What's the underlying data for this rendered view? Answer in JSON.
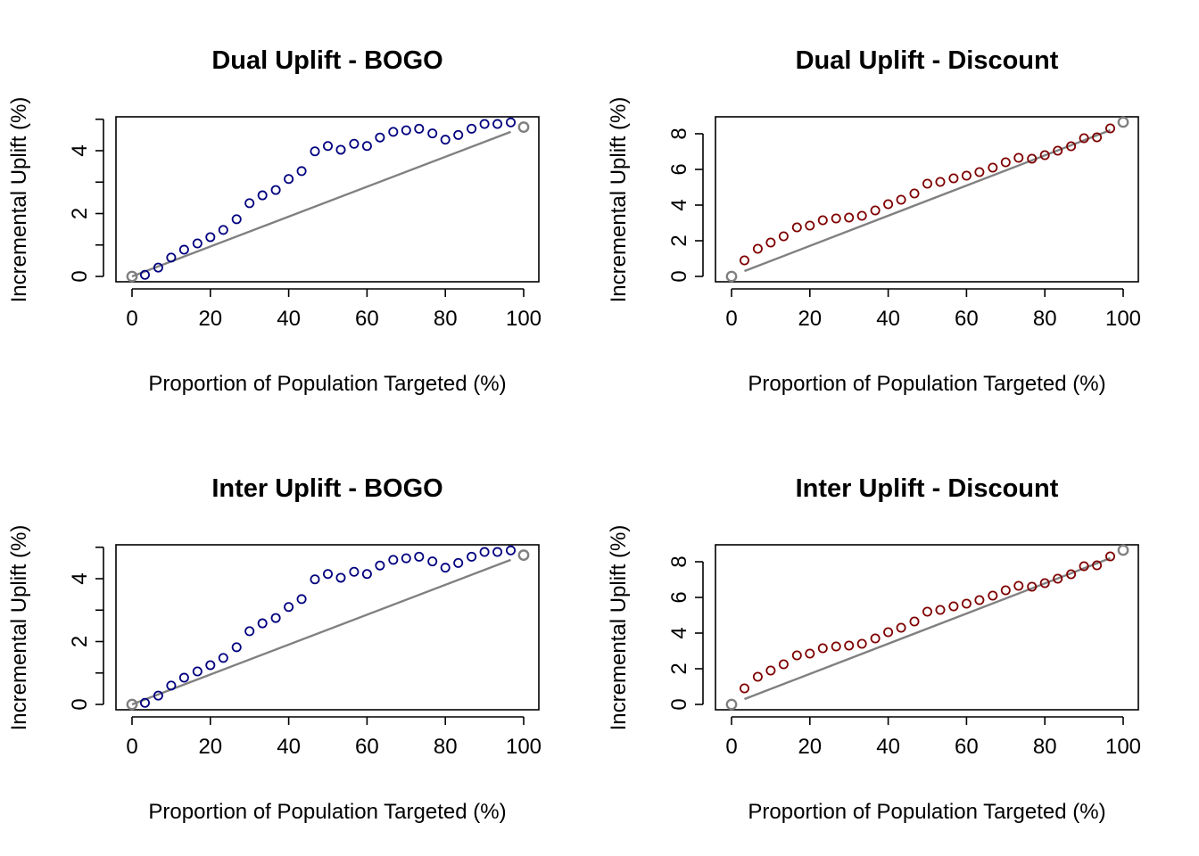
{
  "colors": {
    "bogo": "#00007f",
    "discount": "#7f0000",
    "reference": "#808080",
    "endpoint": "#808080"
  },
  "chart_data": [
    {
      "type": "scatter",
      "title": "Dual Uplift - BOGO",
      "xlabel": "Proportion of Population Targeted (%)",
      "ylabel": "Incremental Uplift (%)",
      "xlim": [
        0,
        100
      ],
      "ylim": [
        0,
        5
      ],
      "xticks": [
        0,
        20,
        40,
        60,
        80,
        100
      ],
      "yticks": [
        0,
        2,
        4
      ],
      "grid": false,
      "series": [
        {
          "x": [
            3.3,
            6.7,
            10.0,
            13.3,
            16.7,
            20.0,
            23.3,
            26.7,
            30.0,
            33.3,
            36.7,
            40.0,
            43.3,
            46.7,
            50.0,
            53.3,
            56.7,
            60.0,
            63.3,
            66.7,
            70.0,
            73.3,
            76.7,
            80.0,
            83.3,
            86.7,
            90.0,
            93.3,
            96.7
          ],
          "y": [
            0.05,
            0.28,
            0.6,
            0.85,
            1.05,
            1.25,
            1.48,
            1.82,
            2.33,
            2.58,
            2.75,
            3.1,
            3.35,
            3.98,
            4.15,
            4.03,
            4.22,
            4.15,
            4.42,
            4.6,
            4.65,
            4.7,
            4.55,
            4.35,
            4.5,
            4.7,
            4.85,
            4.85,
            4.9
          ]
        }
      ],
      "endpoints": {
        "x": [
          0,
          100
        ],
        "y": [
          0,
          4.75
        ]
      },
      "reference_line": {
        "x": [
          0,
          96.7
        ],
        "y": [
          0,
          4.6
        ]
      }
    },
    {
      "type": "scatter",
      "title": "Dual Uplift - Discount",
      "xlabel": "Proportion of Population Targeted (%)",
      "ylabel": "Incremental Uplift (%)",
      "xlim": [
        0,
        100
      ],
      "ylim": [
        0,
        8.7
      ],
      "xticks": [
        0,
        20,
        40,
        60,
        80,
        100
      ],
      "yticks": [
        0,
        2,
        4,
        6,
        8
      ],
      "grid": false,
      "series": [
        {
          "x": [
            3.3,
            6.7,
            10.0,
            13.3,
            16.7,
            20.0,
            23.3,
            26.7,
            30.0,
            33.3,
            36.7,
            40.0,
            43.3,
            46.7,
            50.0,
            53.3,
            56.7,
            60.0,
            63.3,
            66.7,
            70.0,
            73.3,
            76.7,
            80.0,
            83.3,
            86.7,
            90.0,
            93.3,
            96.7
          ],
          "y": [
            0.9,
            1.55,
            1.9,
            2.25,
            2.75,
            2.85,
            3.15,
            3.25,
            3.3,
            3.4,
            3.7,
            4.05,
            4.3,
            4.65,
            5.2,
            5.3,
            5.5,
            5.65,
            5.85,
            6.1,
            6.4,
            6.65,
            6.6,
            6.8,
            7.05,
            7.3,
            7.75,
            7.8,
            8.3
          ]
        }
      ],
      "endpoints": {
        "x": [
          0,
          100
        ],
        "y": [
          0,
          8.65
        ]
      },
      "reference_line": {
        "x": [
          3.3,
          96.7
        ],
        "y": [
          0.3,
          8.2
        ]
      }
    },
    {
      "type": "scatter",
      "title": "Inter Uplift - BOGO",
      "xlabel": "Proportion of Population Targeted (%)",
      "ylabel": "Incremental Uplift (%)",
      "xlim": [
        0,
        100
      ],
      "ylim": [
        0,
        5
      ],
      "xticks": [
        0,
        20,
        40,
        60,
        80,
        100
      ],
      "yticks": [
        0,
        2,
        4
      ],
      "grid": false,
      "series": [
        {
          "x": [
            3.3,
            6.7,
            10.0,
            13.3,
            16.7,
            20.0,
            23.3,
            26.7,
            30.0,
            33.3,
            36.7,
            40.0,
            43.3,
            46.7,
            50.0,
            53.3,
            56.7,
            60.0,
            63.3,
            66.7,
            70.0,
            73.3,
            76.7,
            80.0,
            83.3,
            86.7,
            90.0,
            93.3,
            96.7
          ],
          "y": [
            0.05,
            0.28,
            0.6,
            0.85,
            1.05,
            1.25,
            1.48,
            1.82,
            2.33,
            2.58,
            2.75,
            3.1,
            3.35,
            3.98,
            4.15,
            4.03,
            4.22,
            4.15,
            4.42,
            4.6,
            4.65,
            4.7,
            4.55,
            4.35,
            4.5,
            4.7,
            4.85,
            4.85,
            4.9
          ]
        }
      ],
      "endpoints": {
        "x": [
          0,
          100
        ],
        "y": [
          0,
          4.75
        ]
      },
      "reference_line": {
        "x": [
          0,
          96.7
        ],
        "y": [
          0,
          4.6
        ]
      }
    },
    {
      "type": "scatter",
      "title": "Inter Uplift - Discount",
      "xlabel": "Proportion of Population Targeted (%)",
      "ylabel": "Incremental Uplift (%)",
      "xlim": [
        0,
        100
      ],
      "ylim": [
        0,
        8.7
      ],
      "xticks": [
        0,
        20,
        40,
        60,
        80,
        100
      ],
      "yticks": [
        0,
        2,
        4,
        6,
        8
      ],
      "grid": false,
      "series": [
        {
          "x": [
            3.3,
            6.7,
            10.0,
            13.3,
            16.7,
            20.0,
            23.3,
            26.7,
            30.0,
            33.3,
            36.7,
            40.0,
            43.3,
            46.7,
            50.0,
            53.3,
            56.7,
            60.0,
            63.3,
            66.7,
            70.0,
            73.3,
            76.7,
            80.0,
            83.3,
            86.7,
            90.0,
            93.3,
            96.7
          ],
          "y": [
            0.9,
            1.55,
            1.9,
            2.25,
            2.75,
            2.85,
            3.15,
            3.25,
            3.3,
            3.4,
            3.7,
            4.05,
            4.3,
            4.65,
            5.2,
            5.3,
            5.5,
            5.65,
            5.85,
            6.1,
            6.4,
            6.65,
            6.6,
            6.8,
            7.05,
            7.3,
            7.75,
            7.8,
            8.3
          ]
        }
      ],
      "endpoints": {
        "x": [
          0,
          100
        ],
        "y": [
          0,
          8.65
        ]
      },
      "reference_line": {
        "x": [
          3.3,
          96.7
        ],
        "y": [
          0.3,
          8.2
        ]
      }
    }
  ]
}
